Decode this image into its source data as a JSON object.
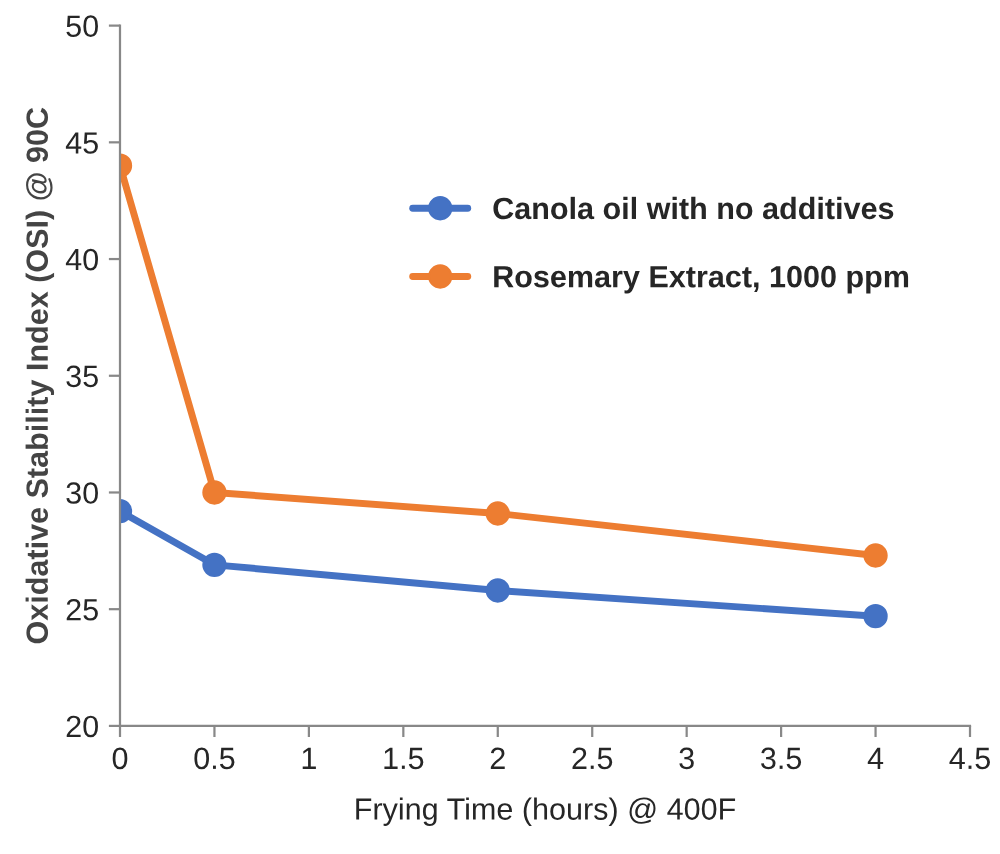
{
  "chart_data": {
    "type": "line",
    "xlabel": "Frying Time (hours) @ 400F",
    "ylabel": "Oxidative Stability Index (OSI) @ 90C",
    "x": [
      0,
      0.5,
      2,
      4
    ],
    "series": [
      {
        "name": "Canola oil with no additives",
        "color": "#4472c4",
        "values": [
          29.2,
          26.9,
          25.8,
          24.7
        ]
      },
      {
        "name": "Rosemary Extract, 1000 ppm",
        "color": "#ed7d31",
        "values": [
          44,
          30,
          29.1,
          27.3
        ]
      }
    ],
    "xlim": [
      0,
      4.5
    ],
    "xticks": [
      0,
      0.5,
      1,
      1.5,
      2,
      2.5,
      3,
      3.5,
      4,
      4.5
    ],
    "ylim": [
      20,
      50
    ],
    "yticks": [
      20,
      25,
      30,
      35,
      40,
      45,
      50
    ],
    "grid": false,
    "legend": "top right",
    "marker": "circle",
    "line_style": "solid"
  }
}
